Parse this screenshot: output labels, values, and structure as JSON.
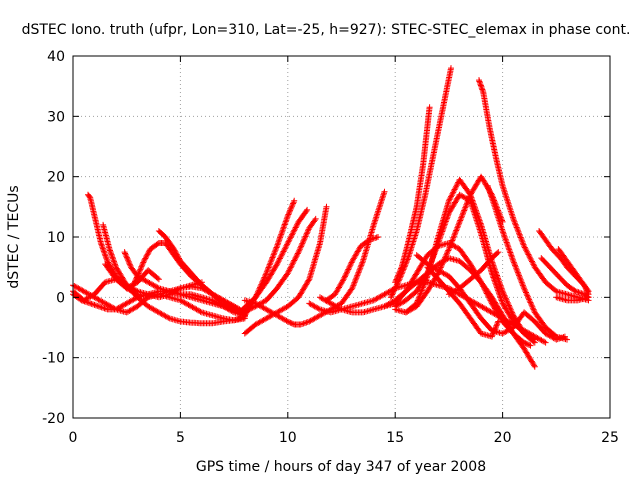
{
  "chart_data": {
    "type": "scatter",
    "title": "dSTEC Iono. truth (ufpr, Lon=310, Lat=-25, h=927): STEC-STEC_elemax in phase cont.",
    "xlabel": "GPS time / hours of day 347 of year 2008",
    "ylabel": "dSTEC  / TECUs",
    "xlim": [
      0,
      25
    ],
    "ylim": [
      -20,
      40
    ],
    "xticks": [
      0,
      5,
      10,
      15,
      20,
      25
    ],
    "yticks": [
      -20,
      -10,
      0,
      10,
      20,
      30,
      40
    ],
    "xtick_labels": [
      "0",
      "5",
      "10",
      "15",
      "20",
      "25"
    ],
    "ytick_labels": [
      "-20",
      "-10",
      "0",
      "10",
      "20",
      "30",
      "40"
    ],
    "grid": true,
    "marker": "+",
    "color": "#ff0000",
    "series": [
      {
        "x": [
          0.0,
          0.5,
          1.0,
          1.5,
          2.0,
          2.5,
          3.0,
          3.5,
          4.0,
          4.5,
          5.0,
          5.5,
          6.0,
          6.5,
          7.0,
          7.5,
          8.0
        ],
        "y": [
          2.0,
          1.0,
          0.0,
          -1.0,
          -2.0,
          -2.5,
          -1.5,
          0.0,
          0.5,
          0.0,
          -0.5,
          -1.5,
          -2.5,
          -3.0,
          -3.5,
          -3.8,
          -3.2
        ]
      },
      {
        "x": [
          0.0,
          0.4,
          0.8,
          1.2,
          1.6,
          2.0,
          2.5,
          3.0,
          3.5,
          4.0,
          4.5,
          5.0,
          5.5,
          6.0,
          6.5,
          7.0,
          7.5,
          8.0
        ],
        "y": [
          0.5,
          -0.5,
          -1.0,
          -1.5,
          -2.0,
          -2.0,
          -1.0,
          0.0,
          0.5,
          1.0,
          1.0,
          0.5,
          0.5,
          0.0,
          -0.5,
          -1.5,
          -2.5,
          -3.0
        ]
      },
      {
        "x": [
          0.7,
          0.8,
          0.9,
          1.0,
          1.1,
          1.3,
          1.6,
          2.0,
          2.5,
          3.0,
          3.5,
          4.0,
          4.5,
          5.0,
          5.5,
          6.0,
          6.5,
          7.0,
          7.5,
          8.0
        ],
        "y": [
          17.0,
          16.5,
          15.0,
          13.5,
          12.0,
          9.0,
          6.0,
          3.5,
          1.5,
          0.5,
          0.2,
          0.5,
          1.0,
          1.5,
          1.8,
          1.5,
          0.5,
          -0.5,
          -1.5,
          -2.5
        ]
      },
      {
        "x": [
          1.4,
          1.7,
          2.0,
          2.5,
          3.0,
          3.5,
          4.0,
          4.5,
          5.0,
          5.5,
          6.0,
          6.5,
          7.0,
          7.5,
          8.0
        ],
        "y": [
          12.0,
          8.0,
          5.0,
          2.0,
          0.0,
          -1.5,
          -2.5,
          -3.5,
          -4.0,
          -4.2,
          -4.3,
          -4.3,
          -4.0,
          -3.8,
          -3.5
        ]
      },
      {
        "x": [
          2.8,
          3.0,
          3.3,
          3.6,
          4.0,
          4.3,
          4.6,
          5.0,
          5.5,
          6.0,
          6.5,
          7.0,
          7.5,
          8.0
        ],
        "y": [
          2.0,
          3.5,
          6.0,
          8.0,
          9.0,
          9.0,
          7.5,
          5.5,
          3.5,
          2.0,
          0.5,
          -0.5,
          -1.5,
          -2.5
        ]
      },
      {
        "x": [
          0.0,
          0.5,
          1.0,
          1.5,
          2.0,
          2.5,
          3.0,
          3.5,
          4.0,
          4.5,
          5.0,
          5.5,
          6.0
        ],
        "y": [
          1.0,
          -0.5,
          0.5,
          2.5,
          3.0,
          2.0,
          1.0,
          0.5,
          0.0,
          0.5,
          1.5,
          2.0,
          2.5
        ]
      },
      {
        "x": [
          2.4,
          2.7,
          3.0,
          3.5,
          4.0,
          4.5,
          5.0,
          5.5,
          6.0,
          6.5,
          7.0,
          7.5,
          8.0
        ],
        "y": [
          7.5,
          5.0,
          3.5,
          2.5,
          1.5,
          1.0,
          0.5,
          0.0,
          -0.5,
          -1.0,
          -1.5,
          -2.0,
          -2.5
        ]
      },
      {
        "x": [
          1.5,
          2.0,
          2.5,
          3.0,
          3.5,
          4.0
        ],
        "y": [
          5.5,
          3.0,
          1.5,
          2.5,
          4.5,
          3.0
        ]
      },
      {
        "x": [
          4.0,
          4.3,
          4.7,
          5.0,
          5.5,
          6.0,
          6.5,
          7.0,
          7.5,
          8.0
        ],
        "y": [
          11.0,
          10.0,
          8.0,
          6.0,
          4.0,
          2.0,
          0.5,
          -1.0,
          -2.0,
          -3.0
        ]
      },
      {
        "x": [
          8.0,
          8.5,
          9.0,
          9.5,
          10.0,
          10.3
        ],
        "y": [
          -3.0,
          0.0,
          4.0,
          8.5,
          13.5,
          16.0
        ]
      },
      {
        "x": [
          7.9,
          8.5,
          9.0,
          9.5,
          10.0,
          10.5,
          10.9
        ],
        "y": [
          -2.0,
          0.0,
          2.5,
          5.5,
          9.0,
          12.5,
          14.5
        ]
      },
      {
        "x": [
          7.9,
          8.5,
          9.0,
          9.5,
          10.0,
          10.5,
          11.0,
          11.3
        ],
        "y": [
          -2.5,
          -1.5,
          -0.5,
          1.5,
          4.0,
          7.5,
          11.5,
          13.0
        ]
      },
      {
        "x": [
          8.0,
          8.5,
          9.0,
          9.5,
          10.0,
          10.5,
          11.0,
          11.5,
          11.8
        ],
        "y": [
          -6.0,
          -4.5,
          -3.5,
          -2.5,
          -1.5,
          0.0,
          3.0,
          9.0,
          15.0
        ]
      },
      {
        "x": [
          8.0,
          8.5,
          9.0,
          9.5,
          10.0,
          10.3,
          10.6,
          11.0,
          11.5,
          12.0,
          12.5,
          13.0,
          13.5,
          14.0,
          14.5
        ],
        "y": [
          -0.5,
          -1.0,
          -2.0,
          -3.0,
          -4.0,
          -4.5,
          -4.5,
          -4.0,
          -3.0,
          -2.0,
          -1.0,
          1.5,
          6.0,
          12.0,
          17.5
        ]
      },
      {
        "x": [
          11.0,
          11.5,
          12.0,
          12.5,
          13.0,
          13.5,
          14.0,
          14.5,
          15.0,
          15.5,
          16.0,
          16.5,
          17.0,
          17.5,
          18.0,
          18.5,
          19.0,
          19.5,
          20.0,
          20.5,
          21.0,
          21.5,
          22.0
        ],
        "y": [
          -1.0,
          -2.0,
          -2.5,
          -2.0,
          -1.5,
          -1.0,
          -0.5,
          0.5,
          1.5,
          2.0,
          2.5,
          2.5,
          2.0,
          1.5,
          0.5,
          -0.5,
          -1.5,
          -2.5,
          -3.5,
          -4.5,
          -5.5,
          -6.5,
          -7.5
        ]
      },
      {
        "x": [
          11.5,
          12.0,
          12.5,
          13.0,
          13.5,
          14.0,
          14.5,
          15.0,
          15.5,
          16.0,
          16.5,
          17.0,
          17.5,
          18.0,
          18.5,
          19.0,
          19.5,
          20.0,
          20.5,
          21.0,
          21.5
        ],
        "y": [
          0.0,
          -1.0,
          -2.0,
          -2.5,
          -2.5,
          -2.0,
          -1.5,
          -0.5,
          1.0,
          2.5,
          4.0,
          5.5,
          6.5,
          6.0,
          4.5,
          2.5,
          0.0,
          -3.0,
          -6.0,
          -8.5,
          -11.5
        ]
      },
      {
        "x": [
          11.8,
          12.2,
          12.6,
          13.0,
          13.4,
          13.8,
          14.2
        ],
        "y": [
          -0.5,
          0.5,
          3.0,
          6.0,
          8.5,
          9.5,
          10.0
        ]
      },
      {
        "x": [
          14.5,
          15.0,
          15.5,
          16.0,
          16.5,
          17.0,
          17.5,
          18.0,
          18.5,
          19.0,
          19.5,
          20.0,
          20.5,
          21.0,
          21.3
        ],
        "y": [
          -1.5,
          -1.0,
          1.0,
          4.0,
          7.0,
          8.5,
          9.0,
          8.0,
          5.5,
          2.5,
          -1.0,
          -4.0,
          -6.0,
          -7.5,
          -8.0
        ]
      },
      {
        "x": [
          14.8,
          15.2,
          15.6,
          16.0,
          16.4,
          16.8,
          17.2,
          17.6
        ],
        "y": [
          0.0,
          3.0,
          6.5,
          11.0,
          17.0,
          24.0,
          31.0,
          38.0
        ]
      },
      {
        "x": [
          15.0,
          15.3,
          15.6,
          16.0,
          16.3,
          16.6
        ],
        "y": [
          2.5,
          5.0,
          9.0,
          15.0,
          22.0,
          31.5
        ]
      },
      {
        "x": [
          15.0,
          15.5,
          16.0,
          16.5,
          17.0,
          17.5,
          18.0,
          18.5,
          19.0,
          19.5,
          20.0,
          20.5,
          21.0,
          21.5
        ],
        "y": [
          -2.0,
          -2.5,
          -1.0,
          3.5,
          10.0,
          16.0,
          19.5,
          17.0,
          12.0,
          6.0,
          1.0,
          -3.0,
          -6.0,
          -7.0
        ]
      },
      {
        "x": [
          15.0,
          15.5,
          16.0,
          16.5,
          17.0,
          17.5,
          18.0,
          18.5,
          19.0,
          19.5,
          20.0,
          20.5,
          21.0,
          21.5
        ],
        "y": [
          -1.5,
          -0.5,
          1.0,
          4.0,
          9.0,
          14.0,
          17.0,
          16.0,
          10.5,
          4.0,
          -1.0,
          -4.0,
          -6.0,
          -7.5
        ]
      },
      {
        "x": [
          15.5,
          16.0,
          16.5,
          17.0,
          17.5,
          18.0,
          18.5,
          19.0,
          19.5,
          20.0
        ],
        "y": [
          -2.5,
          -1.5,
          1.0,
          4.0,
          8.0,
          12.5,
          17.0,
          20.0,
          17.0,
          12.5
        ]
      },
      {
        "x": [
          16.0,
          16.5,
          17.0,
          17.5,
          18.0,
          18.5,
          19.0,
          19.5,
          20.0,
          20.5,
          21.0,
          21.5,
          22.0,
          22.5,
          22.9
        ],
        "y": [
          7.0,
          5.5,
          4.5,
          3.5,
          1.5,
          -1.0,
          -3.5,
          -5.5,
          -6.0,
          -5.0,
          -2.5,
          -4.0,
          -6.0,
          -7.0,
          -6.5
        ]
      },
      {
        "x": [
          16.5,
          17.0,
          17.5,
          18.0,
          18.5,
          19.0,
          19.5,
          19.8
        ],
        "y": [
          5.0,
          3.0,
          1.0,
          -1.0,
          -3.5,
          -6.0,
          -6.5,
          -4.0
        ]
      },
      {
        "x": [
          17.5,
          18.0,
          18.5,
          19.0,
          19.5,
          19.8
        ],
        "y": [
          0.5,
          1.5,
          3.0,
          4.5,
          6.5,
          7.5
        ]
      },
      {
        "x": [
          18.9,
          19.1,
          19.4,
          19.7,
          20.0,
          20.5,
          21.0,
          21.5,
          22.0,
          22.5,
          23.0,
          23.5,
          24.0
        ],
        "y": [
          36.0,
          34.0,
          28.0,
          23.0,
          18.5,
          13.0,
          8.5,
          5.0,
          2.5,
          1.0,
          0.5,
          0.0,
          -0.5
        ]
      },
      {
        "x": [
          19.3,
          19.5,
          20.0,
          20.5,
          21.0,
          21.5,
          22.0,
          22.5,
          23.0
        ],
        "y": [
          18.5,
          16.5,
          11.0,
          6.0,
          1.5,
          -2.5,
          -5.0,
          -6.5,
          -7.0
        ]
      },
      {
        "x": [
          21.7,
          22.0,
          22.3,
          22.7,
          23.0,
          23.4,
          23.8,
          24.0
        ],
        "y": [
          11.0,
          9.5,
          8.0,
          6.5,
          5.0,
          3.5,
          2.0,
          1.0
        ]
      },
      {
        "x": [
          22.6,
          22.9,
          23.2,
          23.5,
          23.8,
          24.0
        ],
        "y": [
          8.0,
          6.5,
          5.0,
          3.5,
          2.0,
          0.5
        ]
      },
      {
        "x": [
          21.8,
          22.2,
          22.6,
          23.0,
          23.4,
          23.8,
          24.0
        ],
        "y": [
          6.5,
          5.0,
          3.5,
          2.0,
          1.0,
          0.5,
          0.0
        ]
      },
      {
        "x": [
          22.5,
          23.0,
          23.5,
          24.0
        ],
        "y": [
          0.0,
          -0.5,
          -0.5,
          0.0
        ]
      }
    ]
  }
}
